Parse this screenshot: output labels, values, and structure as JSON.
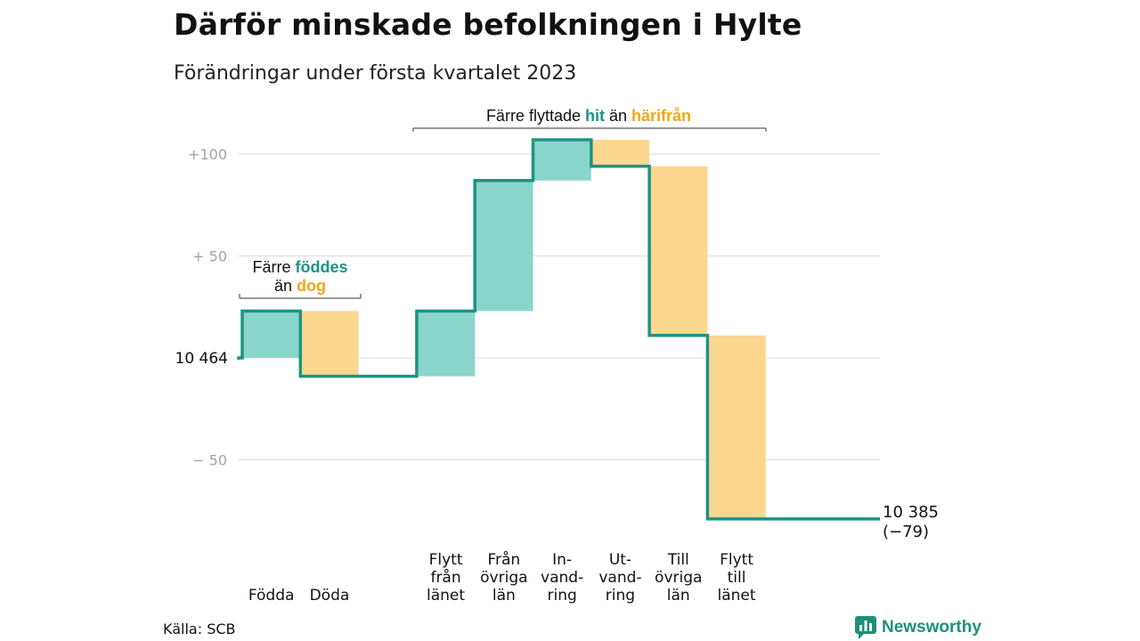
{
  "title": "Därför minskade befolkningen i Hylte",
  "subtitle": "Förändringar under första kvartalet 2023",
  "source": "Källa: SCB",
  "logo_text": "Newsworthy",
  "annotations": {
    "births_deaths": {
      "line1_pre": "Färre ",
      "line1_teal": "föddes",
      "line2_pre": "än ",
      "line2_orange": "dog"
    },
    "migration": {
      "pre": "Färre flyttade ",
      "teal": "hit",
      "mid": " än ",
      "orange": "härifrån"
    }
  },
  "colors": {
    "increase": "#8ad5c9",
    "decrease": "#fbd78f",
    "step_line": "#1c9484",
    "grid": "#dddddd",
    "tick": "#a3a3a3"
  },
  "chart_data": {
    "type": "waterfall",
    "start": {
      "label": "10 464",
      "value": 0
    },
    "end": {
      "label_line1": "10 385",
      "label_line2": "(−79)",
      "change": -79
    },
    "ylim": [
      -80,
      110
    ],
    "yticks": [
      {
        "value": 100,
        "label": "+100"
      },
      {
        "value": 50,
        "label": "+ 50"
      },
      {
        "value": 0,
        "label": ""
      },
      {
        "value": -50,
        "label": "− 50"
      }
    ],
    "steps": [
      {
        "label": [
          "Födda"
        ],
        "change": 23,
        "kind": "increase"
      },
      {
        "label": [
          "Döda"
        ],
        "change": -32,
        "kind": "decrease"
      },
      {
        "label": [],
        "change": 0,
        "kind": "gap"
      },
      {
        "label": [
          "Flytt",
          "från",
          "länet"
        ],
        "change": 32,
        "kind": "increase"
      },
      {
        "label": [
          "Från",
          "övriga",
          "län"
        ],
        "change": 64,
        "kind": "increase"
      },
      {
        "label": [
          "In-",
          "vand-",
          "ring"
        ],
        "change": 20,
        "kind": "increase"
      },
      {
        "label": [
          "Ut-",
          "vand-",
          "ring"
        ],
        "change": -13,
        "kind": "decrease"
      },
      {
        "label": [
          "Till",
          "övriga",
          "län"
        ],
        "change": -83,
        "kind": "decrease"
      },
      {
        "label": [
          "Flytt",
          "till",
          "länet"
        ],
        "change": -90,
        "kind": "decrease"
      }
    ]
  }
}
